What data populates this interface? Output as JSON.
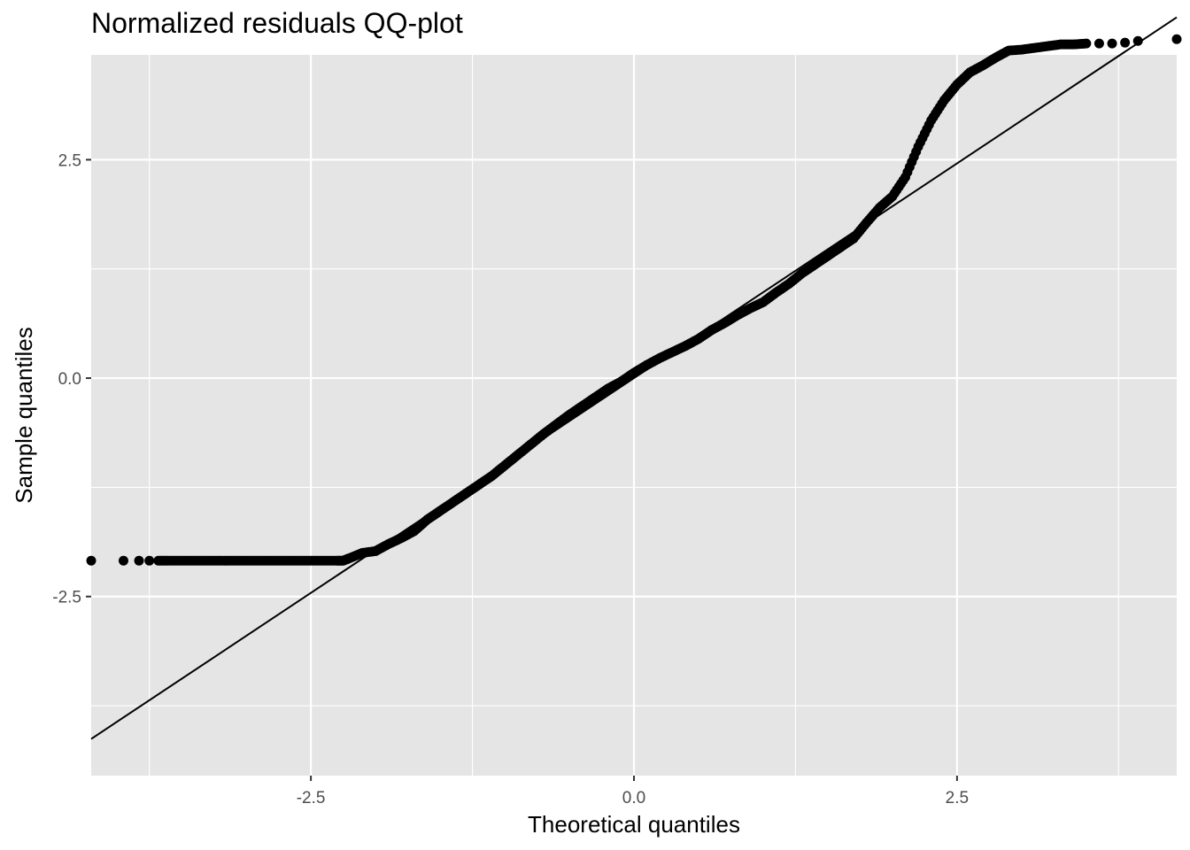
{
  "chart_data": {
    "type": "scatter",
    "title": "Normalized residuals QQ-plot",
    "xlabel": "Theoretical quantiles",
    "ylabel": "Sample quantiles",
    "xlim": [
      -4.2,
      4.2
    ],
    "ylim": [
      -4.55,
      3.7
    ],
    "x_ticks": [
      -2.5,
      0.0,
      2.5
    ],
    "x_tick_labels": [
      "-2.5",
      "0.0",
      "2.5"
    ],
    "y_ticks": [
      -2.5,
      0.0,
      2.5
    ],
    "y_tick_labels": [
      "-2.5",
      "0.0",
      "2.5"
    ],
    "grid": true,
    "panel_background": "#e5e5e5",
    "grid_color": "#ffffff",
    "point_color": "#000000",
    "reference_line": {
      "x": [
        -4.2,
        4.2
      ],
      "y": [
        -4.13,
        4.13
      ],
      "color": "#000000"
    },
    "points": {
      "x": [
        -4.2,
        -3.95,
        -3.83,
        -3.75,
        -3.68,
        -3.6,
        -3.5,
        -3.4,
        -3.3,
        -3.2,
        -3.1,
        -3.0,
        -2.9,
        -2.8,
        -2.7,
        -2.6,
        -2.5,
        -2.4,
        -2.3,
        -2.25,
        -2.2,
        -2.1,
        -2.0,
        -1.9,
        -1.8,
        -1.7,
        -1.6,
        -1.5,
        -1.4,
        -1.3,
        -1.2,
        -1.1,
        -1.0,
        -0.9,
        -0.8,
        -0.7,
        -0.6,
        -0.5,
        -0.4,
        -0.3,
        -0.2,
        -0.1,
        0.0,
        0.1,
        0.2,
        0.3,
        0.4,
        0.5,
        0.6,
        0.7,
        0.8,
        0.9,
        1.0,
        1.1,
        1.2,
        1.3,
        1.4,
        1.5,
        1.6,
        1.7,
        1.8,
        1.9,
        2.0,
        2.1,
        2.2,
        2.3,
        2.4,
        2.5,
        2.6,
        2.7,
        2.8,
        2.9,
        3.0,
        3.1,
        3.2,
        3.3,
        3.4,
        3.5,
        3.6,
        3.7,
        3.8,
        3.9,
        4.2
      ],
      "y": [
        -2.09,
        -2.09,
        -2.09,
        -2.09,
        -2.09,
        -2.09,
        -2.09,
        -2.09,
        -2.09,
        -2.09,
        -2.09,
        -2.09,
        -2.09,
        -2.09,
        -2.09,
        -2.09,
        -2.09,
        -2.09,
        -2.09,
        -2.09,
        -2.06,
        -2.0,
        -1.98,
        -1.9,
        -1.83,
        -1.75,
        -1.62,
        -1.52,
        -1.42,
        -1.32,
        -1.22,
        -1.12,
        -1.0,
        -0.88,
        -0.76,
        -0.64,
        -0.53,
        -0.42,
        -0.32,
        -0.22,
        -0.12,
        -0.04,
        0.06,
        0.15,
        0.23,
        0.3,
        0.37,
        0.45,
        0.55,
        0.63,
        0.72,
        0.8,
        0.87,
        0.98,
        1.08,
        1.2,
        1.3,
        1.4,
        1.5,
        1.6,
        1.78,
        1.95,
        2.08,
        2.3,
        2.65,
        2.95,
        3.18,
        3.36,
        3.5,
        3.58,
        3.67,
        3.75,
        3.76,
        3.78,
        3.8,
        3.82,
        3.82,
        3.83,
        3.83,
        3.83,
        3.84,
        3.86,
        3.88
      ]
    }
  }
}
